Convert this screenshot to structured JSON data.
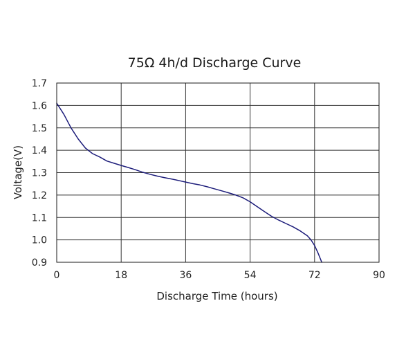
{
  "chart_data": {
    "type": "line",
    "title": "75Ω 4h/d Discharge Curve",
    "xlabel": "Discharge Time (hours)",
    "ylabel": "Voltage(V)",
    "xlim": [
      0,
      90
    ],
    "ylim": [
      0.9,
      1.7
    ],
    "xticks": [
      "0",
      "18",
      "36",
      "54",
      "72",
      "90"
    ],
    "yticks": [
      "0.9",
      "1.0",
      "1.1",
      "1.2",
      "1.3",
      "1.4",
      "1.5",
      "1.6",
      "1.7"
    ],
    "grid": true,
    "line_color": "#1c1c7a",
    "series": [
      {
        "x": [
          0,
          2,
          4,
          6,
          8,
          10,
          12,
          14,
          16,
          18,
          20,
          22,
          24,
          26,
          28,
          30,
          32,
          34,
          36,
          38,
          40,
          42,
          44,
          46,
          48,
          50,
          52,
          54,
          56,
          58,
          60,
          62,
          64,
          66,
          68,
          70,
          71,
          72,
          73,
          74
        ],
        "y": [
          1.61,
          1.56,
          1.5,
          1.45,
          1.41,
          1.385,
          1.37,
          1.352,
          1.342,
          1.332,
          1.323,
          1.313,
          1.302,
          1.293,
          1.285,
          1.278,
          1.272,
          1.265,
          1.258,
          1.251,
          1.245,
          1.237,
          1.228,
          1.219,
          1.21,
          1.2,
          1.188,
          1.17,
          1.148,
          1.126,
          1.105,
          1.088,
          1.073,
          1.058,
          1.04,
          1.018,
          1.0,
          0.975,
          0.94,
          0.9
        ]
      }
    ]
  }
}
